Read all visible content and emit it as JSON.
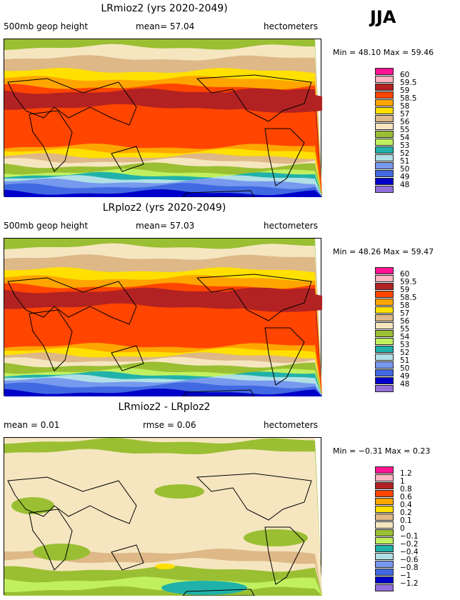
{
  "season": "JJA",
  "palette": [
    "#ff1493",
    "#ffb6c1",
    "#b22222",
    "#ff4500",
    "#ffa500",
    "#ffe000",
    "#deb887",
    "#f5e6c0",
    "#9abf32",
    "#c0f060",
    "#20b2aa",
    "#b0e0e6",
    "#7799ee",
    "#4169e1",
    "#0000c8",
    "#9370db"
  ],
  "panels": [
    {
      "title": "LRmioz2 (yrs 2020-2049)",
      "left": "500mb geop height",
      "mid": "mean=  57.04",
      "right": "hectometers",
      "minmax": "Min =  48.10 Max =  59.46",
      "levels": [
        "60",
        "59.5",
        "59",
        "58.5",
        "58",
        "57",
        "56",
        "55",
        "54",
        "53",
        "52",
        "51",
        "50",
        "49",
        "48"
      ]
    },
    {
      "title": "LRploz2 (yrs 2020-2049)",
      "left": "500mb geop height",
      "mid": "mean=  57.03",
      "right": "hectometers",
      "minmax": "Min =  48.26 Max =  59.47",
      "levels": [
        "60",
        "59.5",
        "59",
        "58.5",
        "58",
        "57",
        "56",
        "55",
        "54",
        "53",
        "52",
        "51",
        "50",
        "49",
        "48"
      ]
    },
    {
      "title": "LRmioz2 - LRploz2",
      "left": "mean =   0.01",
      "mid": "rmse =   0.06",
      "right": "hectometers",
      "minmax": "Min =  −0.31 Max =   0.23",
      "levels": [
        "1.2",
        "1",
        "0.8",
        "0.6",
        "0.4",
        "0.2",
        "0.1",
        "0",
        "−0.1",
        "−0.2",
        "−0.4",
        "−0.6",
        "−0.8",
        "−1",
        "−1.2"
      ]
    }
  ]
}
